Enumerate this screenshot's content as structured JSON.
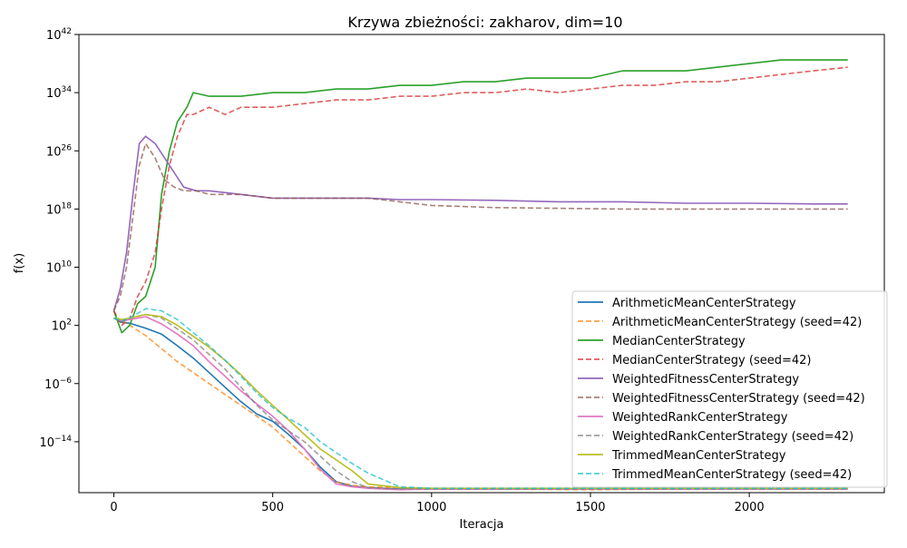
{
  "chart_data": {
    "type": "line",
    "title": "Krzywa zbieżności: zakharov, dim=10",
    "xlabel": "Iteracja",
    "ylabel": "f(x)",
    "xlim": [
      -110,
      2425
    ],
    "ylim_log10": [
      -21,
      42
    ],
    "yscale": "log",
    "grid": false,
    "legend_position": "lower-right",
    "x_ticks": [
      0,
      500,
      1000,
      1500,
      2000
    ],
    "y_ticks": [
      {
        "base": "10",
        "exp": "42",
        "log10": 42
      },
      {
        "base": "10",
        "exp": "34",
        "log10": 34
      },
      {
        "base": "10",
        "exp": "26",
        "log10": 26
      },
      {
        "base": "10",
        "exp": "18",
        "log10": 18
      },
      {
        "base": "10",
        "exp": "10",
        "log10": 10
      },
      {
        "base": "10",
        "exp": "2",
        "log10": 2
      },
      {
        "base": "10",
        "exp": "−6",
        "log10": -6
      },
      {
        "base": "10",
        "exp": "−14",
        "log10": -14
      }
    ],
    "series": [
      {
        "name": "ArithmeticMeanCenterStrategy",
        "color": "#1f77b4",
        "style": "solid",
        "x": [
          0,
          25,
          50,
          100,
          150,
          200,
          250,
          300,
          350,
          400,
          450,
          500,
          550,
          600,
          650,
          700,
          750,
          800,
          900,
          1000,
          1200,
          1500,
          1800,
          2100,
          2310
        ],
        "log10_y": [
          3,
          2.4,
          2.3,
          1.6,
          0.8,
          -0.8,
          -2.5,
          -4.5,
          -6.5,
          -8.5,
          -10.2,
          -11.2,
          -13,
          -15,
          -17.5,
          -19.5,
          -20.1,
          -20.3,
          -20.5,
          -20.5,
          -20.5,
          -20.5,
          -20.5,
          -20.5,
          -20.5
        ]
      },
      {
        "name": "ArithmeticMeanCenterStrategy (seed=42)",
        "color": "#ff7f0e",
        "style": "dashed",
        "x": [
          0,
          25,
          50,
          100,
          150,
          200,
          250,
          300,
          350,
          400,
          450,
          500,
          550,
          600,
          650,
          700,
          750,
          800,
          900,
          1000,
          1200,
          1500,
          1800,
          2100,
          2310
        ],
        "log10_y": [
          3,
          2.6,
          2,
          0.6,
          -1.2,
          -3,
          -4.5,
          -6,
          -7.5,
          -9,
          -10.5,
          -12,
          -14,
          -16,
          -18,
          -19.5,
          -20,
          -20.2,
          -20.3,
          -20.5,
          -20.5,
          -20.6,
          -20.5,
          -20.5,
          -20.5
        ]
      },
      {
        "name": "MedianCenterStrategy",
        "color": "#2ca02c",
        "style": "solid",
        "x": [
          0,
          25,
          50,
          75,
          100,
          130,
          150,
          175,
          200,
          230,
          250,
          300,
          400,
          500,
          600,
          700,
          800,
          900,
          1000,
          1100,
          1200,
          1300,
          1400,
          1500,
          1600,
          1700,
          1800,
          1900,
          2000,
          2100,
          2200,
          2310
        ],
        "log10_y": [
          4,
          1,
          2,
          5,
          6,
          10,
          20,
          26,
          30,
          32,
          34,
          33.5,
          33.5,
          34,
          34,
          34.5,
          34.5,
          35,
          35,
          35.5,
          35.5,
          36,
          36,
          36,
          37,
          37,
          37,
          37.5,
          38,
          38.5,
          38.5,
          38.5
        ]
      },
      {
        "name": "MedianCenterStrategy (seed=42)",
        "color": "#d62728",
        "style": "dashed",
        "x": [
          0,
          25,
          50,
          75,
          100,
          130,
          150,
          175,
          200,
          230,
          250,
          300,
          350,
          400,
          450,
          500,
          600,
          700,
          800,
          900,
          1000,
          1100,
          1200,
          1300,
          1400,
          1500,
          1600,
          1700,
          1800,
          1900,
          2000,
          2100,
          2200,
          2310
        ],
        "log10_y": [
          4,
          2,
          3,
          6,
          8,
          12,
          18,
          24,
          28,
          31,
          31,
          32,
          31,
          32,
          32,
          32,
          32.5,
          33,
          33,
          33.5,
          33.5,
          34,
          34,
          34.5,
          34,
          34.5,
          35,
          35,
          35.5,
          35.5,
          36,
          36.5,
          37,
          37.5
        ]
      },
      {
        "name": "WeightedFitnessCenterStrategy",
        "color": "#9467bd",
        "style": "solid",
        "x": [
          0,
          20,
          40,
          60,
          80,
          100,
          130,
          160,
          190,
          220,
          260,
          300,
          400,
          500,
          600,
          700,
          800,
          900,
          1000,
          1200,
          1400,
          1600,
          1800,
          2000,
          2200,
          2310
        ],
        "log10_y": [
          4,
          7,
          12,
          20,
          27,
          28,
          27,
          25,
          23,
          21,
          20.5,
          20.5,
          20,
          19.5,
          19.5,
          19.5,
          19.5,
          19.3,
          19.3,
          19.2,
          19,
          19,
          18.8,
          18.8,
          18.7,
          18.7
        ]
      },
      {
        "name": "WeightedFitnessCenterStrategy (seed=42)",
        "color": "#8c564b",
        "style": "dashed",
        "x": [
          0,
          20,
          40,
          60,
          80,
          100,
          130,
          160,
          190,
          220,
          260,
          300,
          400,
          500,
          600,
          700,
          800,
          900,
          1000,
          1200,
          1400,
          1600,
          1800,
          2000,
          2200,
          2310
        ],
        "log10_y": [
          4,
          6,
          10,
          17,
          24,
          27,
          25,
          22,
          21,
          20.5,
          20.5,
          20,
          20,
          19.5,
          19.5,
          19.5,
          19.5,
          19,
          18.5,
          18.2,
          18.1,
          18,
          18,
          18,
          18,
          18
        ]
      },
      {
        "name": "WeightedRankCenterStrategy",
        "color": "#e377c2",
        "style": "solid",
        "x": [
          0,
          25,
          50,
          100,
          150,
          200,
          250,
          300,
          350,
          400,
          450,
          500,
          550,
          600,
          650,
          700,
          750,
          800,
          900,
          1000,
          1200,
          1500,
          1800,
          2100,
          2310
        ],
        "log10_y": [
          3,
          2.6,
          2.8,
          3.2,
          2.2,
          0.8,
          -0.8,
          -3,
          -5,
          -7,
          -8.8,
          -10.5,
          -12.5,
          -15,
          -17.8,
          -19.8,
          -20.2,
          -20.4,
          -20.6,
          -20.5,
          -20.5,
          -20.5,
          -20.5,
          -20.5,
          -20.5
        ]
      },
      {
        "name": "WeightedRankCenterStrategy (seed=42)",
        "color": "#7f7f7f",
        "style": "dashed",
        "x": [
          0,
          25,
          50,
          100,
          150,
          200,
          250,
          300,
          350,
          400,
          450,
          500,
          550,
          600,
          650,
          700,
          750,
          800,
          900,
          1000,
          1200,
          1500,
          1800,
          2100,
          2310
        ],
        "log10_y": [
          3,
          2.5,
          3,
          3.5,
          3,
          1.5,
          0,
          -2,
          -4,
          -6.5,
          -9,
          -11,
          -12.5,
          -14,
          -16,
          -18,
          -19.5,
          -20.3,
          -20.5,
          -20.5,
          -20.5,
          -20.5,
          -20.5,
          -20.5,
          -20.5
        ]
      },
      {
        "name": "TrimmedMeanCenterStrategy",
        "color": "#bcbd22",
        "style": "solid",
        "x": [
          0,
          25,
          50,
          100,
          150,
          200,
          250,
          300,
          350,
          400,
          450,
          500,
          550,
          600,
          650,
          700,
          750,
          800,
          900,
          1000,
          1200,
          1500,
          1800,
          2100,
          2310
        ],
        "log10_y": [
          3,
          2.8,
          3,
          3.5,
          3.2,
          2,
          0.5,
          -1,
          -2.8,
          -4.8,
          -7,
          -9,
          -11,
          -13,
          -15,
          -16.5,
          -18,
          -19.8,
          -20.3,
          -20.4,
          -20.4,
          -20.4,
          -20.4,
          -20.4,
          -20.4
        ]
      },
      {
        "name": "TrimmedMeanCenterStrategy (seed=42)",
        "color": "#17becf",
        "style": "dashed",
        "x": [
          0,
          25,
          50,
          100,
          150,
          200,
          250,
          300,
          350,
          400,
          450,
          500,
          550,
          600,
          650,
          700,
          750,
          800,
          900,
          1000,
          1200,
          1500,
          1800,
          2100,
          2310
        ],
        "log10_y": [
          3,
          2.6,
          3,
          4.3,
          4,
          2.8,
          1,
          -0.8,
          -2.8,
          -5,
          -7.3,
          -9.3,
          -10.8,
          -12,
          -14,
          -15.5,
          -17,
          -18.3,
          -20.2,
          -20.4,
          -20.4,
          -20.4,
          -20.4,
          -20.4,
          -20.4
        ]
      }
    ]
  }
}
